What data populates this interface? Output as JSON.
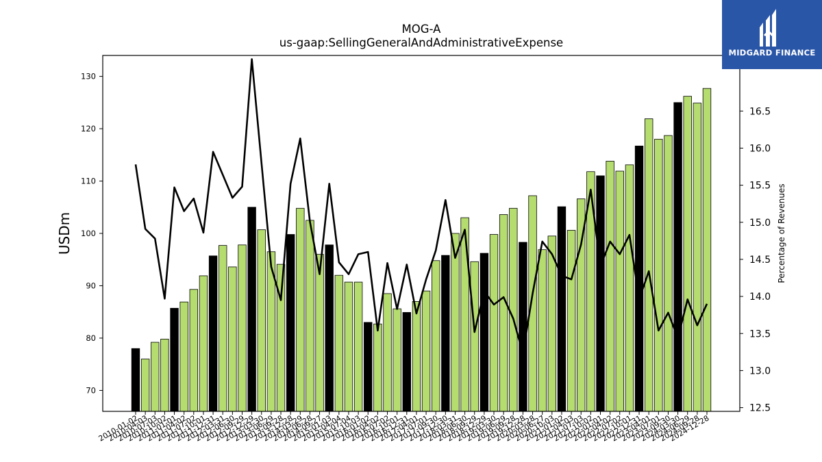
{
  "chart_data": {
    "type": "bar",
    "title": "MOG-A",
    "subtitle": "us-gaap:SellingGeneralAndAdministrativeExpense",
    "ylabel": "USDm",
    "ylabel_right": "Percentage of Revenues",
    "ylim": [
      66,
      134
    ],
    "ylim_right": [
      12.45,
      17.25
    ],
    "yticks": [
      70,
      80,
      90,
      100,
      110,
      120,
      130
    ],
    "yticks_right": [
      12.5,
      13.0,
      13.5,
      14.0,
      14.5,
      15.0,
      15.5,
      16.0,
      16.5
    ],
    "grid": false,
    "colors": {
      "quarter_bar": "#b5dc6e",
      "annual_bar": "#000000",
      "line": "#000000"
    },
    "categories": [
      "2010-01-02",
      "2010-04-03",
      "2010-07-03",
      "2010-10-02",
      "2011-01-01",
      "2011-04-02",
      "2011-07-02",
      "2011-10-01",
      "2011-12-31",
      "2012-03-31",
      "2012-06-30",
      "2012-09-29",
      "2012-12-29",
      "2013-03-30",
      "2013-06-29",
      "2013-09-28",
      "2013-12-28",
      "2014-03-29",
      "2014-06-28",
      "2014-09-27",
      "2015-01-03",
      "2015-04-04",
      "2015-07-04",
      "2015-10-03",
      "2016-01-02",
      "2016-04-02",
      "2016-07-02",
      "2016-10-01",
      "2016-12-31",
      "2017-04-01",
      "2017-07-01",
      "2017-09-30",
      "2017-12-30",
      "2018-03-31",
      "2018-06-30",
      "2018-09-29",
      "2018-12-29",
      "2019-03-30",
      "2019-06-29",
      "2019-09-28",
      "2019-12-28",
      "2020-03-28",
      "2020-06-27",
      "2020-10-03",
      "2021-01-02",
      "2021-04-03",
      "2021-07-03",
      "2021-10-02",
      "2022-01-01",
      "2022-04-02",
      "2022-07-02",
      "2022-10-01",
      "2022-12-31",
      "2023-04-01",
      "2023-07-01",
      "2023-09-30",
      "2024-03-30",
      "2024-06-29",
      "2024-09-28",
      "2024-12-28"
    ],
    "bar_kind": [
      "annual",
      "quarter",
      "quarter",
      "quarter",
      "annual",
      "quarter",
      "quarter",
      "quarter",
      "annual",
      "quarter",
      "quarter",
      "quarter",
      "annual",
      "quarter",
      "quarter",
      "quarter",
      "annual",
      "quarter",
      "quarter",
      "quarter",
      "annual",
      "quarter",
      "quarter",
      "quarter",
      "annual",
      "quarter",
      "quarter",
      "quarter",
      "annual",
      "quarter",
      "quarter",
      "quarter",
      "annual",
      "quarter",
      "quarter",
      "quarter",
      "annual",
      "quarter",
      "quarter",
      "quarter",
      "annual",
      "quarter",
      "quarter",
      "quarter",
      "annual",
      "quarter",
      "quarter",
      "quarter",
      "annual",
      "quarter",
      "quarter",
      "quarter",
      "annual",
      "quarter",
      "quarter",
      "quarter",
      "annual",
      "quarter",
      "quarter",
      "quarter"
    ],
    "series": [
      {
        "name": "",
        "values": [
          78.0,
          76.0,
          79.2,
          79.8,
          85.7,
          86.9,
          89.3,
          91.9,
          95.7,
          97.7,
          93.6,
          97.8,
          105.0,
          100.7,
          96.5,
          94.1,
          99.8,
          104.8,
          102.5,
          96.0,
          97.8,
          92.0,
          90.7,
          90.7,
          83.0,
          82.7,
          88.5,
          85.6,
          84.9,
          87.0,
          89.0,
          94.8,
          95.8,
          100.0,
          103.0,
          94.6,
          96.2,
          99.8,
          103.6,
          104.8,
          98.3,
          107.2,
          96.9,
          99.5,
          105.1,
          100.6,
          106.6,
          111.8,
          111.0,
          113.8,
          111.9,
          113.1,
          116.7,
          121.9,
          118.0,
          118.7,
          125.0,
          126.2,
          124.9,
          127.7
        ]
      },
      {
        "name": "",
        "axis": "right",
        "values": [
          15.78,
          14.91,
          14.78,
          13.97,
          15.47,
          15.15,
          15.32,
          14.86,
          15.95,
          15.64,
          15.33,
          15.48,
          17.2,
          15.8,
          14.4,
          13.95,
          15.52,
          16.13,
          15.01,
          14.3,
          15.52,
          14.46,
          14.3,
          14.57,
          14.6,
          13.54,
          14.45,
          13.83,
          14.43,
          13.77,
          14.23,
          14.62,
          15.3,
          14.52,
          14.9,
          13.52,
          14.07,
          13.89,
          13.99,
          13.7,
          13.23,
          14.04,
          14.74,
          14.57,
          14.28,
          14.23,
          14.7,
          15.44,
          14.41,
          14.74,
          14.57,
          14.83,
          13.96,
          14.34,
          13.54,
          13.78,
          13.44,
          13.96,
          13.61,
          13.9
        ]
      }
    ]
  },
  "logo": {
    "text": "MIDGARD FINANCE"
  }
}
